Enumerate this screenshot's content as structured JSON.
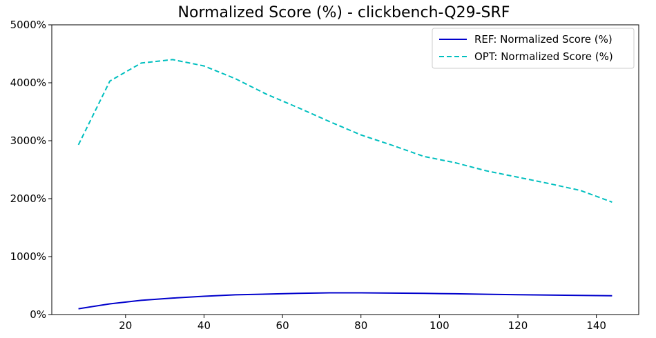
{
  "chart_data": {
    "type": "line",
    "title": "Normalized Score (%) - clickbench-Q29-SRF",
    "xlabel": "",
    "ylabel": "",
    "xlim": [
      1.2,
      150.8
    ],
    "ylim": [
      0,
      5000
    ],
    "x_ticks": [
      20,
      40,
      60,
      80,
      100,
      120,
      140
    ],
    "y_ticks": [
      0,
      1000,
      2000,
      3000,
      4000,
      5000
    ],
    "y_tick_labels": [
      "0%",
      "1000%",
      "2000%",
      "3000%",
      "4000%",
      "5000%"
    ],
    "grid": false,
    "legend_position": "top-right",
    "series": [
      {
        "name": "REF: Normalized Score (%)",
        "color": "#0000cc",
        "line_style": "solid",
        "x": [
          8,
          16,
          24,
          32,
          40,
          48,
          56,
          64,
          72,
          80,
          88,
          96,
          104,
          112,
          120,
          128,
          136,
          144
        ],
        "y": [
          100,
          185,
          245,
          285,
          315,
          340,
          352,
          365,
          375,
          375,
          370,
          365,
          358,
          350,
          343,
          336,
          330,
          325
        ]
      },
      {
        "name": "OPT: Normalized Score (%)",
        "color": "#00bfbf",
        "line_style": "dashed",
        "x": [
          8,
          16,
          24,
          32,
          40,
          48,
          56,
          64,
          72,
          80,
          88,
          96,
          104,
          112,
          120,
          128,
          136,
          144
        ],
        "y": [
          2930,
          4030,
          4340,
          4400,
          4290,
          4070,
          3800,
          3570,
          3330,
          3100,
          2920,
          2730,
          2620,
          2480,
          2370,
          2260,
          2140,
          1940
        ]
      }
    ]
  }
}
